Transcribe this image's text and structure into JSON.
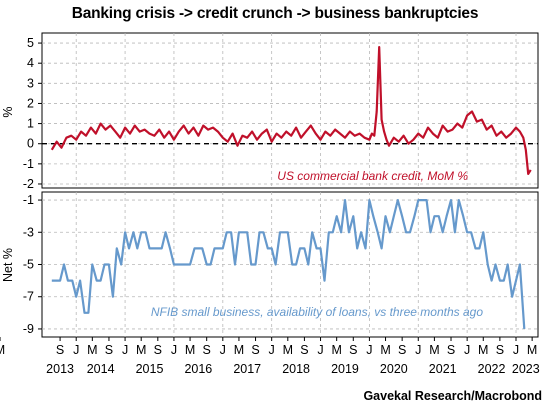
{
  "title": "Banking crisis -> credit crunch -> business bankruptcies",
  "source": "Gavekal Research/Macrobond",
  "chart_data": [
    {
      "type": "line",
      "id": "top",
      "ylabel": "%",
      "ylim": [
        -2.2,
        5.5
      ],
      "yticks": [
        5,
        4,
        3,
        2,
        1,
        0,
        -1,
        -2
      ],
      "zero_line": true,
      "grid": true,
      "annotation": "US commercial bank credit, MoM %",
      "series": [
        {
          "color": "#c0102a",
          "x": [
            2013.5,
            2013.6,
            2013.7,
            2013.8,
            2013.9,
            2014.0,
            2014.1,
            2014.2,
            2014.3,
            2014.4,
            2014.5,
            2014.6,
            2014.7,
            2014.8,
            2014.9,
            2015.0,
            2015.1,
            2015.2,
            2015.3,
            2015.4,
            2015.5,
            2015.6,
            2015.7,
            2015.8,
            2015.9,
            2016.0,
            2016.1,
            2016.2,
            2016.3,
            2016.4,
            2016.5,
            2016.6,
            2016.7,
            2016.8,
            2016.9,
            2017.0,
            2017.1,
            2017.2,
            2017.3,
            2017.4,
            2017.5,
            2017.6,
            2017.7,
            2017.8,
            2017.9,
            2018.0,
            2018.1,
            2018.2,
            2018.3,
            2018.4,
            2018.5,
            2018.6,
            2018.7,
            2018.8,
            2018.9,
            2019.0,
            2019.1,
            2019.2,
            2019.3,
            2019.4,
            2019.5,
            2019.6,
            2019.7,
            2019.8,
            2019.9,
            2020.0,
            2020.05,
            2020.1,
            2020.15,
            2020.2,
            2020.25,
            2020.3,
            2020.35,
            2020.4,
            2020.5,
            2020.6,
            2020.7,
            2020.8,
            2020.9,
            2021.0,
            2021.1,
            2021.2,
            2021.3,
            2021.4,
            2021.5,
            2021.6,
            2021.7,
            2021.8,
            2021.9,
            2022.0,
            2022.1,
            2022.2,
            2022.3,
            2022.4,
            2022.5,
            2022.6,
            2022.7,
            2022.8,
            2022.9,
            2023.0,
            2023.08,
            2023.15,
            2023.2,
            2023.25,
            2023.3
          ],
          "y": [
            -0.3,
            0.1,
            -0.2,
            0.3,
            0.4,
            0.2,
            0.6,
            0.4,
            0.8,
            0.5,
            1.0,
            0.7,
            0.9,
            0.6,
            0.3,
            0.8,
            0.5,
            0.9,
            0.6,
            0.7,
            0.5,
            0.4,
            0.7,
            0.3,
            0.6,
            0.2,
            0.6,
            0.9,
            0.5,
            0.8,
            0.4,
            0.9,
            0.7,
            0.8,
            0.6,
            0.3,
            0.1,
            0.5,
            -0.1,
            0.4,
            0.3,
            0.6,
            0.2,
            0.5,
            0.7,
            0.1,
            0.5,
            0.3,
            0.6,
            0.4,
            0.8,
            0.3,
            0.6,
            0.9,
            0.5,
            0.2,
            0.6,
            0.4,
            0.7,
            0.5,
            0.3,
            0.6,
            0.4,
            0.5,
            0.3,
            0.2,
            0.5,
            0.4,
            1.6,
            4.8,
            1.2,
            0.6,
            0.2,
            -0.1,
            0.3,
            0.1,
            0.4,
            0.0,
            0.2,
            0.5,
            0.3,
            0.8,
            0.5,
            0.3,
            0.9,
            0.6,
            0.7,
            1.0,
            0.8,
            1.4,
            1.6,
            1.1,
            1.2,
            0.7,
            0.9,
            0.4,
            0.6,
            0.3,
            0.5,
            0.8,
            0.6,
            0.3,
            -0.3,
            -1.5,
            -1.3
          ]
        }
      ]
    },
    {
      "type": "line",
      "id": "bottom",
      "ylabel": "Net %",
      "ylim": [
        -9.5,
        -0.5
      ],
      "yticks": [
        -1,
        -3,
        -5,
        -7,
        -9
      ],
      "grid": true,
      "annotation": "NFIB small business, availability of loans, vs three months ago",
      "series": [
        {
          "color": "#6699cc",
          "x": [
            2013.5,
            2013.58,
            2013.67,
            2013.75,
            2013.83,
            2013.92,
            2014.0,
            2014.08,
            2014.17,
            2014.25,
            2014.33,
            2014.42,
            2014.5,
            2014.58,
            2014.67,
            2014.75,
            2014.83,
            2014.92,
            2015.0,
            2015.08,
            2015.17,
            2015.25,
            2015.33,
            2015.42,
            2015.5,
            2015.58,
            2015.67,
            2015.75,
            2015.83,
            2015.92,
            2016.0,
            2016.08,
            2016.17,
            2016.25,
            2016.33,
            2016.42,
            2016.5,
            2016.58,
            2016.67,
            2016.75,
            2016.83,
            2016.92,
            2017.0,
            2017.08,
            2017.17,
            2017.25,
            2017.33,
            2017.42,
            2017.5,
            2017.58,
            2017.67,
            2017.75,
            2017.83,
            2017.92,
            2018.0,
            2018.08,
            2018.17,
            2018.25,
            2018.33,
            2018.42,
            2018.5,
            2018.58,
            2018.67,
            2018.75,
            2018.83,
            2018.92,
            2019.0,
            2019.08,
            2019.17,
            2019.25,
            2019.33,
            2019.42,
            2019.5,
            2019.58,
            2019.67,
            2019.75,
            2019.83,
            2019.92,
            2020.0,
            2020.08,
            2020.17,
            2020.25,
            2020.33,
            2020.42,
            2020.5,
            2020.58,
            2020.67,
            2020.75,
            2020.83,
            2020.92,
            2021.0,
            2021.08,
            2021.17,
            2021.25,
            2021.33,
            2021.42,
            2021.5,
            2021.58,
            2021.67,
            2021.75,
            2021.83,
            2021.92,
            2022.0,
            2022.08,
            2022.17,
            2022.25,
            2022.33,
            2022.42,
            2022.5,
            2022.58,
            2022.67,
            2022.75,
            2022.83,
            2022.92,
            2023.0,
            2023.08,
            2023.17
          ],
          "y": [
            -6,
            -6,
            -6,
            -5,
            -6,
            -6,
            -7,
            -6,
            -8,
            -8,
            -5,
            -6,
            -6,
            -5,
            -5,
            -7,
            -4,
            -5,
            -3,
            -4,
            -3,
            -4,
            -3,
            -3,
            -4,
            -4,
            -4,
            -4,
            -3,
            -4,
            -5,
            -5,
            -5,
            -5,
            -5,
            -4,
            -4,
            -4,
            -5,
            -5,
            -4,
            -4,
            -4,
            -3,
            -3,
            -5,
            -3,
            -3,
            -3,
            -5,
            -5,
            -3,
            -3,
            -4,
            -4,
            -5,
            -3,
            -3,
            -3,
            -5,
            -5,
            -4,
            -4,
            -5,
            -3,
            -4,
            -4,
            -6,
            -3,
            -3,
            -2,
            -3,
            -1,
            -3,
            -2,
            -4,
            -3,
            -4,
            -1,
            -2,
            -3,
            -4,
            -2,
            -3,
            -2,
            -1,
            -2,
            -3,
            -3,
            -2,
            -1,
            -1,
            -1,
            -3,
            -2,
            -2,
            -3,
            -2,
            -1,
            -3,
            -1,
            -2,
            -3,
            -3,
            -4,
            -4,
            -3,
            -5,
            -6,
            -5,
            -6,
            -6,
            -5,
            -7,
            -6,
            -5,
            -9
          ]
        }
      ]
    }
  ],
  "xaxis": {
    "month_ticks": [
      "S",
      "J",
      "M",
      "S",
      "J",
      "M",
      "S",
      "J",
      "M",
      "S",
      "J",
      "M",
      "S",
      "J",
      "M",
      "S",
      "J",
      "M",
      "S",
      "J",
      "M",
      "S",
      "J",
      "M",
      "S",
      "J",
      "M",
      "S",
      "J",
      "M",
      "M"
    ],
    "years": [
      "2013",
      "2014",
      "2015",
      "2016",
      "2017",
      "2018",
      "2019",
      "2020",
      "2021",
      "2022",
      "2023"
    ]
  }
}
